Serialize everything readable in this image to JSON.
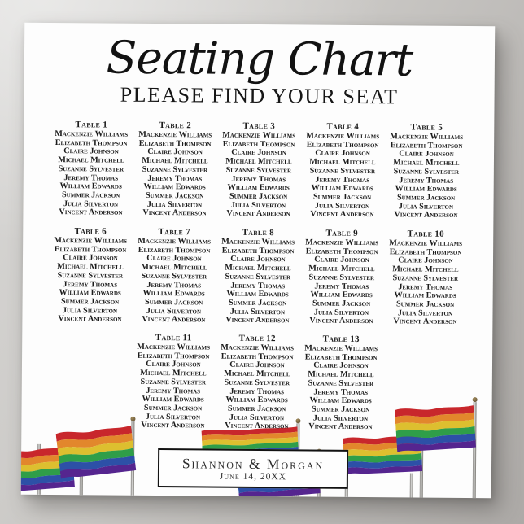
{
  "poster": {
    "title": "Seating Chart",
    "subtitle": "PLEASE FIND YOUR SEAT",
    "table_labels": [
      "Table 1",
      "Table 2",
      "Table 3",
      "Table 4",
      "Table 5",
      "Table 6",
      "Table 7",
      "Table 8",
      "Table 9",
      "Table 10",
      "Table 11",
      "Table 12",
      "Table 13"
    ],
    "guest_names": [
      "Mackenzie Williams",
      "Elizabeth Thompson",
      "Claire Johnson",
      "Michael Mitchell",
      "Suzanne Sylvester",
      "Jeremy Thomas",
      "William Edwards",
      "Summer Jackson",
      "Julia Silverton",
      "Vincent Anderson"
    ],
    "footer": {
      "couple_names": "Shannon & Morgan",
      "event_date": "June 14, 20XX"
    }
  },
  "colors": {
    "text": "#1b1b1b",
    "poster_background": "#fdfdfd",
    "backdrop_gray": "#c7c5c2",
    "footer_border": "#121212",
    "flag_stripes": [
      "#c8272c",
      "#e2872c",
      "#ddbf2f",
      "#2f9e49",
      "#2d50a7",
      "#55258f"
    ],
    "flagpole": "#9a9a9a",
    "flag_finial": "#6e5a38"
  }
}
